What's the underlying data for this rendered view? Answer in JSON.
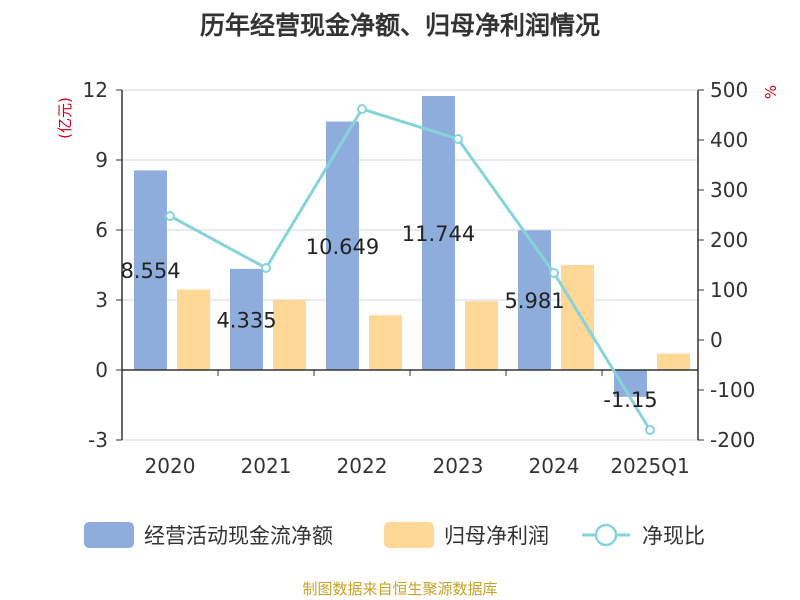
{
  "title": "历年经营现金净额、归母净利润情况",
  "source": "制图数据来自恒生聚源数据库",
  "colors": {
    "cash": "#8EADDC",
    "profit": "#FFD796",
    "ratio": "#86D4DA"
  },
  "chart_data": {
    "type": "bar",
    "categories": [
      "2020",
      "2021",
      "2022",
      "2023",
      "2024",
      "2025Q1"
    ],
    "ylim": [
      -3,
      12
    ],
    "yticks": [
      12,
      9,
      6,
      3,
      0,
      -3
    ],
    "ylabel": "(亿元)",
    "y2lim": [
      -200,
      500
    ],
    "y2ticks": [
      500,
      400,
      300,
      200,
      100,
      0,
      -100,
      -200
    ],
    "y2label": "%",
    "legend_position": "bottom",
    "grid": true,
    "series": [
      {
        "name": "经营活动现金流净额",
        "type": "bar",
        "axis": "left",
        "values": [
          8.554,
          4.335,
          10.649,
          11.744,
          5.981,
          -1.15
        ],
        "labels": [
          "8.554",
          "4.335",
          "10.649",
          "11.744",
          "5.981",
          "-1.15"
        ]
      },
      {
        "name": "归母净利润",
        "type": "bar",
        "axis": "left",
        "values": [
          3.45,
          3.0,
          2.35,
          2.95,
          4.5,
          0.7
        ]
      },
      {
        "name": "净现比",
        "type": "line",
        "axis": "right",
        "values": [
          248,
          144,
          462,
          402,
          134,
          -180
        ]
      }
    ]
  }
}
